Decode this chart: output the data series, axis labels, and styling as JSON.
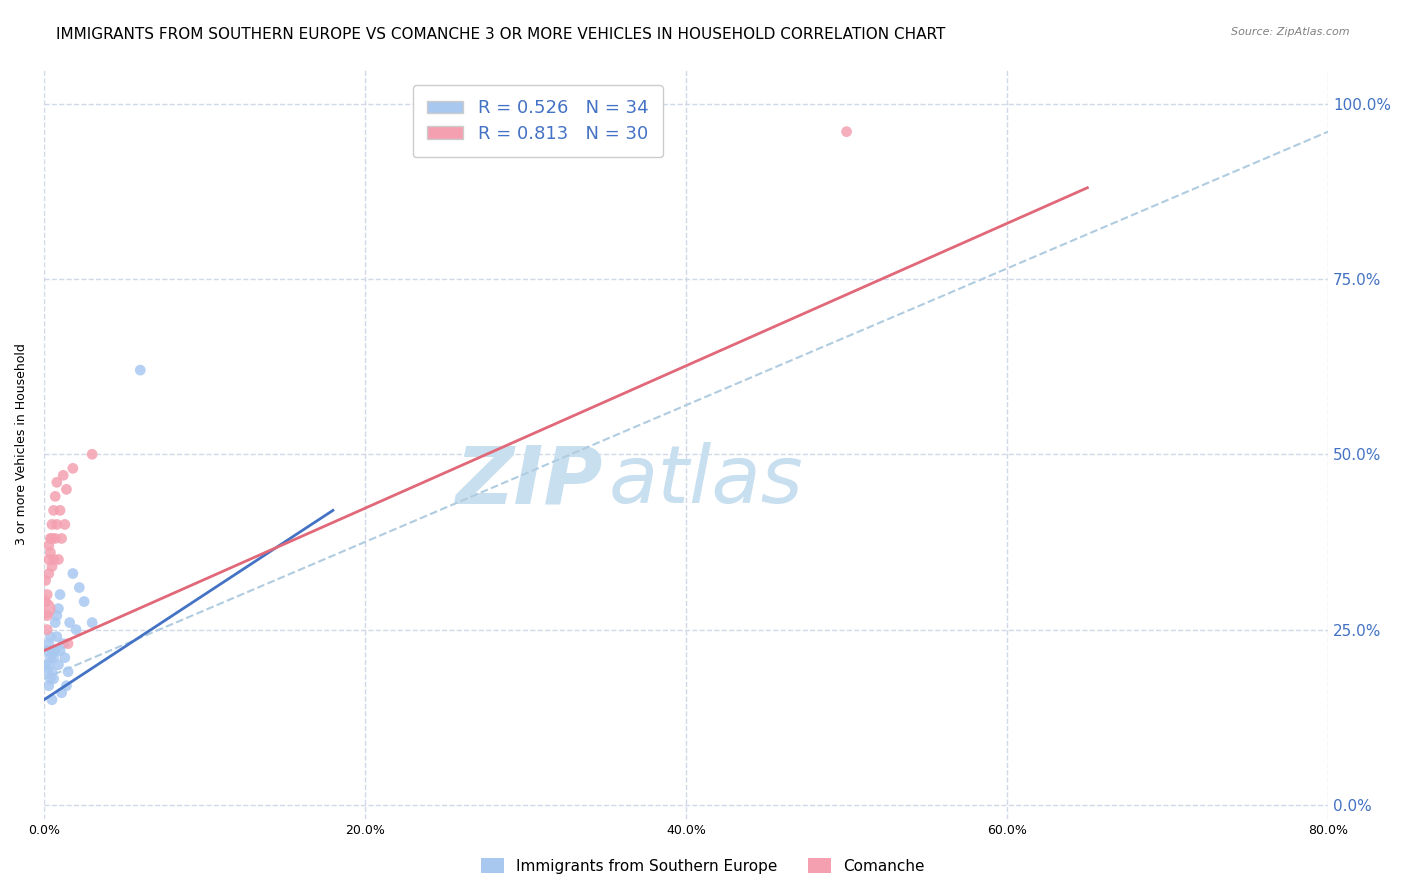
{
  "title": "IMMIGRANTS FROM SOUTHERN EUROPE VS COMANCHE 3 OR MORE VEHICLES IN HOUSEHOLD CORRELATION CHART",
  "source": "Source: ZipAtlas.com",
  "xlabel_ticks": [
    "0.0%",
    "20.0%",
    "40.0%",
    "60.0%",
    "80.0%"
  ],
  "xlabel_tick_vals": [
    0.0,
    0.2,
    0.4,
    0.6,
    0.8
  ],
  "ylabel": "3 or more Vehicles in Household",
  "ylabel_ticks": [
    "0.0%",
    "25.0%",
    "50.0%",
    "75.0%",
    "100.0%"
  ],
  "ylabel_tick_vals": [
    0.0,
    0.25,
    0.5,
    0.75,
    1.0
  ],
  "xlim": [
    0.0,
    0.8
  ],
  "ylim": [
    -0.02,
    1.05
  ],
  "blue_R": 0.526,
  "blue_N": 34,
  "pink_R": 0.813,
  "pink_N": 30,
  "blue_color": "#a8c8f0",
  "pink_color": "#f4a0b0",
  "blue_line_color": "#4472c4",
  "pink_line_color": "#e06878",
  "dashed_line_color": "#b0cce0",
  "watermark_text": "ZIPatlas",
  "watermark_color": "#c8dff0",
  "title_fontsize": 11,
  "axis_label_fontsize": 9,
  "tick_fontsize": 9,
  "legend_fontsize": 13,
  "blue_scatter_x": [
    0.001,
    0.002,
    0.002,
    0.003,
    0.003,
    0.003,
    0.004,
    0.004,
    0.004,
    0.005,
    0.005,
    0.005,
    0.006,
    0.006,
    0.007,
    0.007,
    0.008,
    0.008,
    0.009,
    0.009,
    0.01,
    0.01,
    0.011,
    0.012,
    0.013,
    0.014,
    0.015,
    0.016,
    0.018,
    0.02,
    0.022,
    0.025,
    0.03,
    0.06
  ],
  "blue_scatter_y": [
    0.2,
    0.19,
    0.22,
    0.17,
    0.2,
    0.23,
    0.18,
    0.21,
    0.24,
    0.19,
    0.22,
    0.15,
    0.21,
    0.18,
    0.26,
    0.22,
    0.27,
    0.24,
    0.28,
    0.2,
    0.3,
    0.22,
    0.16,
    0.23,
    0.21,
    0.17,
    0.19,
    0.26,
    0.33,
    0.25,
    0.31,
    0.29,
    0.26,
    0.62
  ],
  "blue_scatter_sizes": [
    60,
    60,
    60,
    60,
    60,
    60,
    60,
    60,
    60,
    60,
    60,
    60,
    60,
    60,
    60,
    60,
    60,
    60,
    60,
    60,
    60,
    60,
    60,
    60,
    60,
    60,
    60,
    60,
    60,
    60,
    60,
    60,
    60,
    60
  ],
  "pink_scatter_x": [
    0.001,
    0.001,
    0.001,
    0.002,
    0.002,
    0.002,
    0.003,
    0.003,
    0.003,
    0.004,
    0.004,
    0.005,
    0.005,
    0.005,
    0.006,
    0.006,
    0.007,
    0.007,
    0.008,
    0.008,
    0.009,
    0.01,
    0.011,
    0.012,
    0.013,
    0.014,
    0.015,
    0.018,
    0.03,
    0.5
  ],
  "pink_scatter_y": [
    0.28,
    0.29,
    0.32,
    0.27,
    0.3,
    0.25,
    0.33,
    0.35,
    0.37,
    0.36,
    0.38,
    0.34,
    0.4,
    0.38,
    0.35,
    0.42,
    0.38,
    0.44,
    0.4,
    0.46,
    0.35,
    0.42,
    0.38,
    0.47,
    0.4,
    0.45,
    0.23,
    0.48,
    0.5,
    0.96
  ],
  "pink_scatter_sizes": [
    200,
    60,
    60,
    60,
    60,
    60,
    60,
    60,
    60,
    60,
    60,
    60,
    60,
    60,
    60,
    60,
    60,
    60,
    60,
    60,
    60,
    60,
    60,
    60,
    60,
    60,
    60,
    60,
    60,
    60
  ],
  "blue_line_x": [
    0.0,
    0.18
  ],
  "blue_line_y": [
    0.15,
    0.42
  ],
  "pink_line_x": [
    0.0,
    0.65
  ],
  "pink_line_y": [
    0.22,
    0.88
  ],
  "dashed_line_x": [
    0.0,
    0.8
  ],
  "dashed_line_y": [
    0.18,
    0.96
  ],
  "legend_labels": [
    "Immigrants from Southern Europe",
    "Comanche"
  ],
  "background_color": "#ffffff",
  "grid_color": "#d0d8e8"
}
